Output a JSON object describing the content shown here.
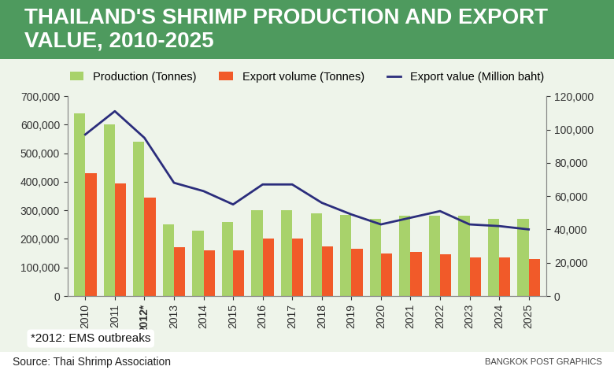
{
  "chart_data": {
    "type": "bar",
    "title": "THAILAND'S SHRIMP PRODUCTION AND EXPORT VALUE, 2010-2025",
    "categories": [
      "2010",
      "2011",
      "2012*",
      "2013",
      "2014",
      "2015",
      "2016",
      "2017",
      "2018",
      "2019",
      "2020",
      "2021",
      "2022",
      "2023",
      "2024",
      "2025"
    ],
    "series": [
      {
        "name": "Production (Tonnes)",
        "type": "bar",
        "color": "#a8d26b",
        "values": [
          640000,
          600000,
          540000,
          250000,
          230000,
          260000,
          300000,
          300000,
          290000,
          285000,
          270000,
          280000,
          280000,
          280000,
          270000,
          270000
        ]
      },
      {
        "name": "Export volume (Tonnes)",
        "type": "bar",
        "color": "#f15a29",
        "values": [
          430000,
          395000,
          345000,
          170000,
          160000,
          160000,
          200000,
          200000,
          175000,
          165000,
          150000,
          155000,
          145000,
          135000,
          135000,
          130000
        ]
      },
      {
        "name": "Export value (Million baht)",
        "type": "line",
        "axis": "y2",
        "color": "#2b2d7c",
        "values": [
          97000,
          111000,
          95000,
          68000,
          63000,
          55000,
          67000,
          67000,
          56000,
          49000,
          43000,
          47000,
          51000,
          43000,
          42000,
          40000
        ]
      }
    ],
    "ylim": [
      0,
      700000
    ],
    "yticks": [
      0,
      {
        "value": 100000,
        "label": "100,000"
      },
      {
        "value": 200000,
        "label": "200,000"
      },
      {
        "value": 300000,
        "label": "300,000"
      },
      {
        "value": 400000,
        "label": "400,000"
      },
      {
        "value": 500000,
        "label": "500,000"
      },
      {
        "value": 600000,
        "label": "600,000"
      },
      {
        "value": 700000,
        "label": "700,000"
      }
    ],
    "y2lim": [
      0,
      120000
    ],
    "y2ticks": [
      0,
      {
        "value": 20000,
        "label": "20,000"
      },
      {
        "value": 40000,
        "label": "40,000"
      },
      {
        "value": 60000,
        "label": "60,000"
      },
      {
        "value": 80000,
        "label": "80,000"
      },
      {
        "value": 100000,
        "label": "100,000"
      },
      {
        "value": 120000,
        "label": "120,000"
      }
    ],
    "annotations": [
      "*2012: EMS outbreaks"
    ],
    "source": "Source: Thai Shrimp Association",
    "credit": "BANGKOK POST GRAPHICS",
    "legend": "upper center",
    "grid": false
  }
}
